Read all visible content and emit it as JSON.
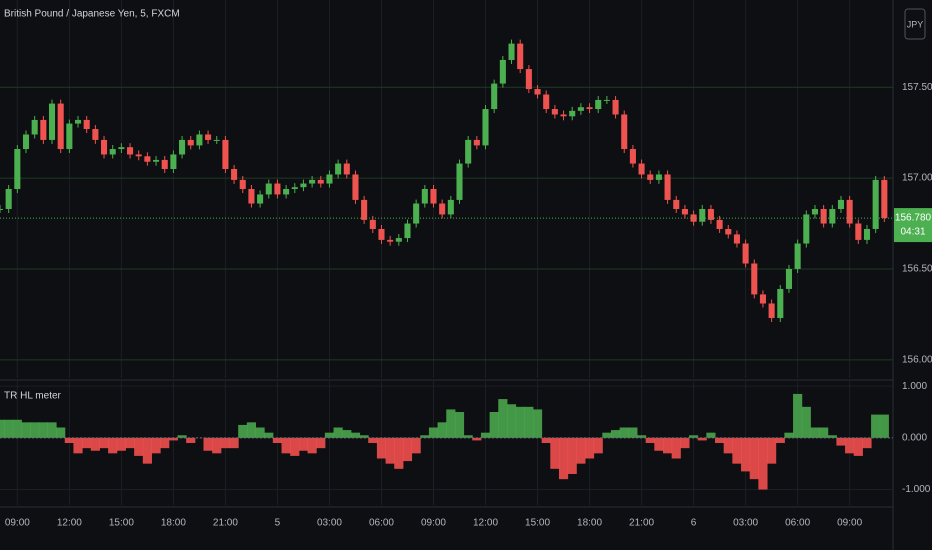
{
  "toolbar": {
    "currency": "JPY"
  },
  "chart_data": [
    {
      "type": "candlestick",
      "title": "British Pound / Japanese Yen, 5, FXCM",
      "up_color": "#4caf50",
      "down_color": "#ef5350",
      "x": [
        -1,
        -0.5,
        0,
        0.5,
        1,
        1.5,
        2,
        2.5,
        3,
        3.5,
        4,
        4.5,
        5,
        5.5,
        6,
        6.5,
        7,
        7.5,
        8,
        8.5,
        9,
        9.5,
        10,
        10.5,
        11,
        11.5,
        12,
        12.5,
        13,
        13.5,
        14,
        14.5,
        15,
        15.5,
        16,
        16.5,
        17,
        17.5,
        18,
        18.5,
        19,
        19.5,
        20,
        20.5,
        21,
        21.5,
        22,
        22.5,
        23,
        23.5,
        24,
        24.5,
        25,
        25.5,
        26,
        26.5,
        27,
        27.5,
        28,
        28.5,
        29,
        29.5,
        30,
        30.5,
        31,
        31.5,
        32,
        32.5,
        33,
        33.5,
        34,
        34.5,
        35,
        35.5,
        36,
        36.5,
        37,
        37.5,
        38,
        38.5,
        39,
        39.5,
        40,
        40.5,
        41,
        41.5,
        42,
        42.5,
        43,
        43.5,
        44,
        44.5,
        45,
        45.5,
        46,
        46.5,
        47,
        47.5,
        48,
        48.5,
        49,
        49.5,
        50
      ],
      "values": [
        156.83,
        156.94,
        157.16,
        157.24,
        157.32,
        157.21,
        157.41,
        157.16,
        157.3,
        157.32,
        157.27,
        157.21,
        157.13,
        157.16,
        157.17,
        157.13,
        157.12,
        157.09,
        157.1,
        157.05,
        157.13,
        157.21,
        157.18,
        157.24,
        157.21,
        157.21,
        157.05,
        156.99,
        156.94,
        156.86,
        156.91,
        156.97,
        156.91,
        156.94,
        156.95,
        156.97,
        156.99,
        156.97,
        157.02,
        157.08,
        157.02,
        156.88,
        156.77,
        156.72,
        156.66,
        156.65,
        156.67,
        156.75,
        156.86,
        156.94,
        156.86,
        156.8,
        156.88,
        157.08,
        157.21,
        157.18,
        157.38,
        157.52,
        157.65,
        157.74,
        157.6,
        157.49,
        157.46,
        157.38,
        157.35,
        157.34,
        157.37,
        157.39,
        157.38,
        157.43,
        157.43,
        157.35,
        157.16,
        157.08,
        157.02,
        156.99,
        157.02,
        156.88,
        156.83,
        156.8,
        156.76,
        156.83,
        156.77,
        156.72,
        156.69,
        156.64,
        156.53,
        156.36,
        156.31,
        156.23,
        156.39,
        156.5,
        156.64,
        156.8,
        156.83,
        156.75,
        156.83,
        156.88,
        156.75,
        156.66,
        156.72,
        156.99,
        156.78
      ],
      "xlim": [
        -1,
        50.5
      ],
      "ylim": [
        155.9,
        157.98
      ],
      "yticks": [
        {
          "value": 157.5,
          "label": "157.500"
        },
        {
          "value": 157,
          "label": "157.000"
        },
        {
          "value": 156.5,
          "label": "156.500"
        },
        {
          "value": 156,
          "label": "156.000"
        }
      ],
      "last_price": {
        "value": 156.78,
        "label": "156.780"
      },
      "countdown": "04:31",
      "grid": true
    },
    {
      "type": "bar",
      "title": "TR HL meter",
      "up_color": "#4caf50",
      "down_color": "#ff5252",
      "x": [
        -1,
        -0.5,
        0,
        0.5,
        1,
        1.5,
        2,
        2.5,
        3,
        3.5,
        4,
        4.5,
        5,
        5.5,
        6,
        6.5,
        7,
        7.5,
        8,
        8.5,
        9,
        9.5,
        10,
        10.5,
        11,
        11.5,
        12,
        12.5,
        13,
        13.5,
        14,
        14.5,
        15,
        15.5,
        16,
        16.5,
        17,
        17.5,
        18,
        18.5,
        19,
        19.5,
        20,
        20.5,
        21,
        21.5,
        22,
        22.5,
        23,
        23.5,
        24,
        24.5,
        25,
        25.5,
        26,
        26.5,
        27,
        27.5,
        28,
        28.5,
        29,
        29.5,
        30,
        30.5,
        31,
        31.5,
        32,
        32.5,
        33,
        33.5,
        34,
        34.5,
        35,
        35.5,
        36,
        36.5,
        37,
        37.5,
        38,
        38.5,
        39,
        39.5,
        40,
        40.5,
        41,
        41.5,
        42,
        42.5,
        43,
        43.5,
        44,
        44.5,
        45,
        45.5,
        46,
        46.5,
        47,
        47.5,
        48,
        48.5,
        49,
        49.5,
        50
      ],
      "values": [
        0.35,
        0.35,
        0.35,
        0.3,
        0.3,
        0.3,
        0.3,
        0.2,
        -0.1,
        -0.3,
        -0.2,
        -0.25,
        -0.2,
        -0.3,
        -0.25,
        -0.2,
        -0.35,
        -0.5,
        -0.3,
        -0.2,
        -0.05,
        0.05,
        -0.1,
        0,
        -0.25,
        -0.3,
        -0.2,
        -0.2,
        0.25,
        0.3,
        0.2,
        0.1,
        -0.1,
        -0.3,
        -0.35,
        -0.25,
        -0.3,
        -0.2,
        0.1,
        0.2,
        0.15,
        0.1,
        0.05,
        -0.1,
        -0.4,
        -0.5,
        -0.6,
        -0.45,
        -0.3,
        0.05,
        0.2,
        0.3,
        0.55,
        0.5,
        0.05,
        -0.05,
        0.1,
        0.5,
        0.75,
        0.65,
        0.6,
        0.6,
        0.55,
        -0.1,
        -0.6,
        -0.8,
        -0.7,
        -0.5,
        -0.4,
        -0.3,
        0.1,
        0.15,
        0.2,
        0.2,
        0.05,
        -0.1,
        -0.25,
        -0.3,
        -0.4,
        -0.2,
        0.05,
        -0.05,
        0.1,
        -0.1,
        -0.3,
        -0.5,
        -0.65,
        -0.8,
        -1,
        -0.5,
        -0.1,
        0.1,
        0.85,
        0.6,
        0.2,
        0.2,
        0.05,
        -0.15,
        -0.3,
        -0.35,
        -0.2,
        0.45,
        0.45
      ],
      "xlim": [
        -1,
        50.5
      ],
      "ylim": [
        -1.3,
        1.1
      ],
      "yticks": [
        {
          "value": 1,
          "label": "1.000"
        },
        {
          "value": 0,
          "label": "0.000"
        },
        {
          "value": -1,
          "label": "-1.000"
        }
      ],
      "xticks": [
        {
          "value": 0,
          "label": "09:00"
        },
        {
          "value": 3,
          "label": "12:00"
        },
        {
          "value": 6,
          "label": "15:00"
        },
        {
          "value": 9,
          "label": "18:00"
        },
        {
          "value": 12,
          "label": "21:00"
        },
        {
          "value": 15,
          "label": "5"
        },
        {
          "value": 18,
          "label": "03:00"
        },
        {
          "value": 21,
          "label": "06:00"
        },
        {
          "value": 24,
          "label": "09:00"
        },
        {
          "value": 27,
          "label": "12:00"
        },
        {
          "value": 30,
          "label": "15:00"
        },
        {
          "value": 33,
          "label": "18:00"
        },
        {
          "value": 36,
          "label": "21:00"
        },
        {
          "value": 39,
          "label": "6"
        },
        {
          "value": 42,
          "label": "03:00"
        },
        {
          "value": 45,
          "label": "06:00"
        },
        {
          "value": 48,
          "label": "09:00"
        }
      ],
      "grid": true
    }
  ]
}
